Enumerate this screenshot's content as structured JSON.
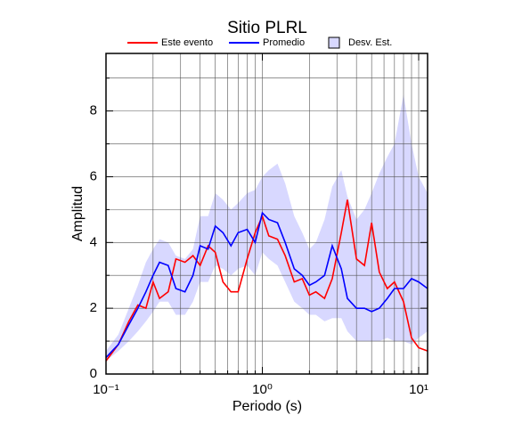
{
  "chart_data": {
    "type": "line",
    "title": "Sitio PLRL",
    "x_label": "Periodo (s)",
    "y_label": "Amplitud",
    "x_scale": "log",
    "xlim": [
      0.1,
      11.4
    ],
    "ylim": [
      0,
      9.75
    ],
    "xticks": [
      {
        "value": 0.1,
        "label": "10⁻¹"
      },
      {
        "value": 1,
        "label": "10⁰"
      },
      {
        "value": 10,
        "label": "10¹"
      }
    ],
    "xminor": [
      0.2,
      0.3,
      0.4,
      0.5,
      0.6,
      0.7,
      0.8,
      0.9,
      2,
      3,
      4,
      5,
      6,
      7,
      8,
      9
    ],
    "yticks": [
      0,
      2,
      4,
      6,
      8
    ],
    "yminor": [
      1,
      3,
      5,
      7,
      9
    ],
    "grid": true,
    "legend": "top",
    "x": [
      0.1,
      0.12,
      0.14,
      0.16,
      0.18,
      0.2,
      0.22,
      0.25,
      0.28,
      0.32,
      0.36,
      0.4,
      0.45,
      0.5,
      0.56,
      0.63,
      0.7,
      0.8,
      0.9,
      1.0,
      1.1,
      1.25,
      1.4,
      1.6,
      1.8,
      2.0,
      2.2,
      2.5,
      2.8,
      3.2,
      3.5,
      4.0,
      4.5,
      5.0,
      5.6,
      6.3,
      7.0,
      8.0,
      9.0,
      10,
      11.4
    ],
    "series": [
      {
        "name": "Este evento",
        "color": "#ff0000",
        "values": [
          0.4,
          0.9,
          1.6,
          2.1,
          2.0,
          2.8,
          2.3,
          2.5,
          3.5,
          3.4,
          3.6,
          3.3,
          3.9,
          3.7,
          2.8,
          2.5,
          2.5,
          3.5,
          4.3,
          4.8,
          4.2,
          4.1,
          3.6,
          2.8,
          2.9,
          2.4,
          2.5,
          2.3,
          2.9,
          4.3,
          5.3,
          3.5,
          3.3,
          4.6,
          3.1,
          2.6,
          2.8,
          2.2,
          1.1,
          0.8,
          0.7
        ]
      },
      {
        "name": "Promedio",
        "color": "#0000ff",
        "values": [
          0.5,
          0.9,
          1.5,
          2.0,
          2.5,
          3.0,
          3.4,
          3.3,
          2.6,
          2.5,
          3.0,
          3.9,
          3.8,
          4.5,
          4.3,
          3.9,
          4.3,
          4.4,
          4.0,
          4.9,
          4.7,
          4.6,
          4.0,
          3.2,
          3.0,
          2.7,
          2.8,
          3.0,
          3.9,
          3.2,
          2.3,
          2.0,
          2.0,
          1.9,
          2.0,
          2.3,
          2.6,
          2.6,
          2.9,
          2.8,
          2.6
        ]
      }
    ],
    "band": {
      "name": "Desv. Est.",
      "color": "#d8d8ff",
      "lower": [
        0.4,
        0.7,
        1.0,
        1.3,
        1.6,
        1.9,
        2.2,
        2.2,
        1.8,
        1.8,
        2.2,
        2.8,
        2.8,
        3.3,
        3.2,
        3.0,
        3.2,
        3.3,
        3.0,
        3.7,
        3.5,
        3.3,
        2.8,
        2.2,
        2.0,
        1.8,
        1.8,
        1.6,
        1.7,
        1.7,
        1.3,
        1.0,
        1.0,
        1.0,
        1.0,
        1.1,
        1.0,
        1.0,
        0.9,
        1.1,
        1.3
      ],
      "upper": [
        0.7,
        1.2,
        2.0,
        2.7,
        3.4,
        3.8,
        4.1,
        4.0,
        3.6,
        3.5,
        3.8,
        4.8,
        4.8,
        5.5,
        5.3,
        5.0,
        5.2,
        5.5,
        5.6,
        6.0,
        6.2,
        6.4,
        5.8,
        4.8,
        4.3,
        3.8,
        4.0,
        4.7,
        5.7,
        6.2,
        5.4,
        4.7,
        5.0,
        5.5,
        6.1,
        6.6,
        7.0,
        8.5,
        7.0,
        6.0,
        5.5
      ]
    }
  }
}
